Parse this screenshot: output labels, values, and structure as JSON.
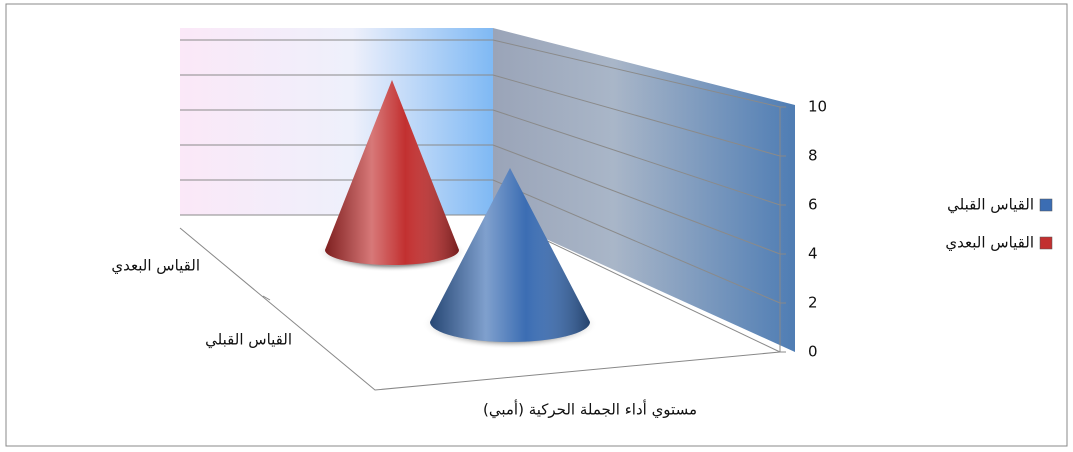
{
  "chart_data": {
    "type": "cone",
    "categories": [
      "مستوي أداء الجملة الحركية (أمبي)"
    ],
    "series": [
      {
        "name": "القياس القبلي",
        "color": "#3b6db3",
        "values": [
          7
        ]
      },
      {
        "name": "القياس البعدي",
        "color": "#c23030",
        "values": [
          8.5
        ]
      }
    ],
    "ylim": [
      0,
      10
    ],
    "yticks": [
      0,
      2,
      4,
      6,
      8,
      10
    ],
    "grid": true,
    "legend": "right"
  }
}
